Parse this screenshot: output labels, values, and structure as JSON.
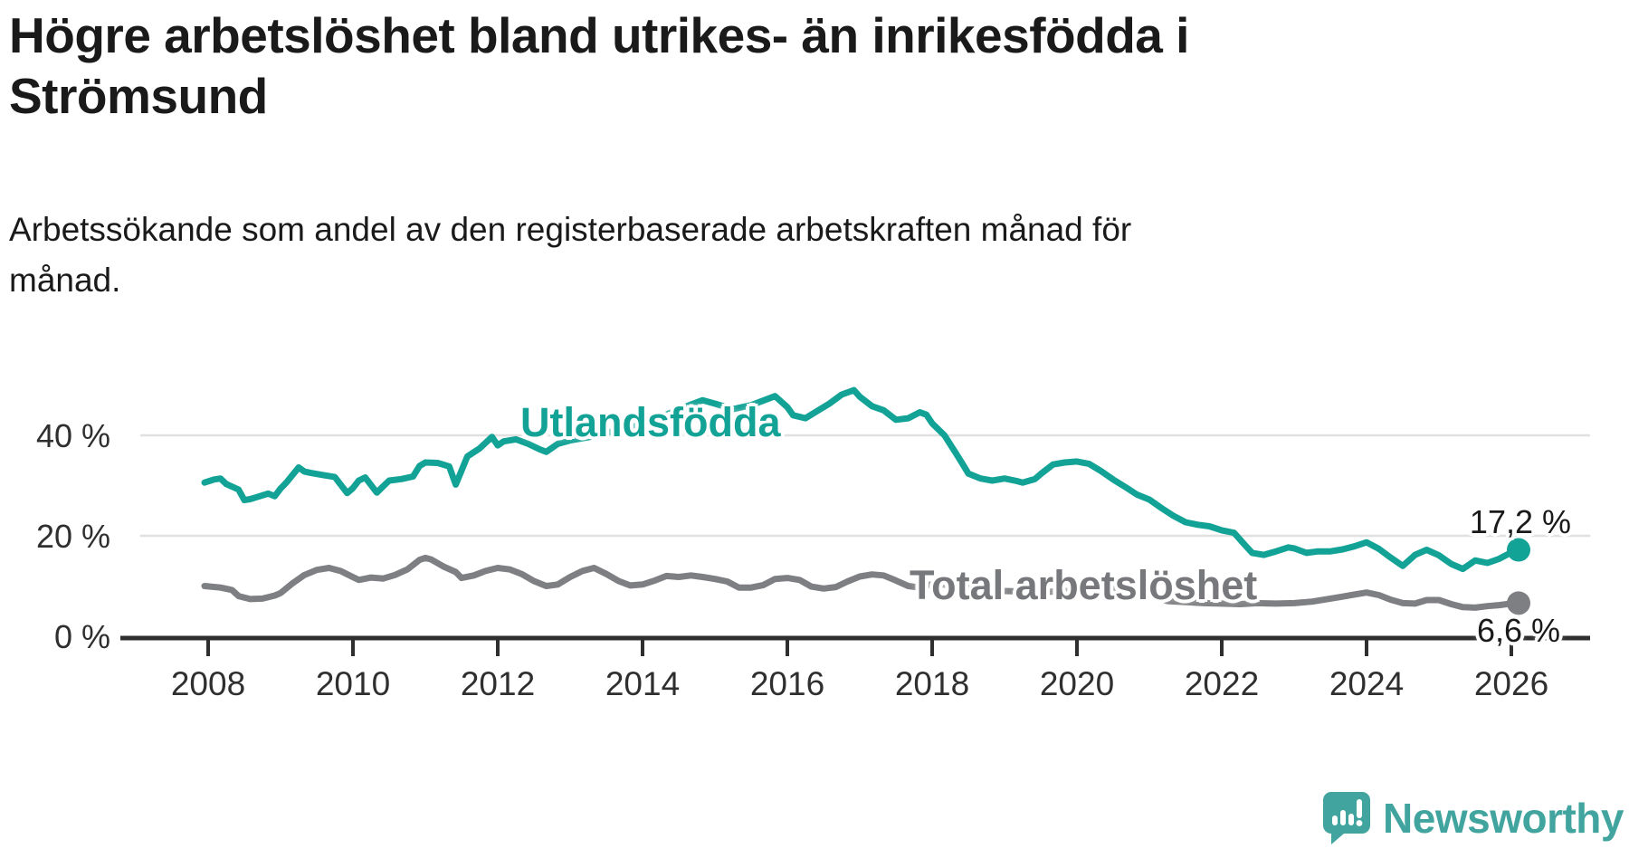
{
  "header": {
    "title_lines": [
      "Högre arbetslöshet bland utrikes- än inrikesfödda i",
      "Strömsund"
    ],
    "subtitle_lines": [
      "Arbetssökande som andel av den registerbaserade arbetskraften månad för",
      "månad."
    ]
  },
  "chart_data": {
    "type": "line",
    "title": "Högre arbetslöshet bland utrikes- än inrikesfödda i Strömsund",
    "subtitle": "Arbetssökande som andel av den registerbaserade arbetskraften månad för månad.",
    "grid": "horizontal",
    "x_axis": {
      "ticks": [
        2008,
        2010,
        2012,
        2014,
        2016,
        2018,
        2020,
        2022,
        2024,
        2026
      ],
      "range": [
        2007.1,
        2027.1
      ]
    },
    "y_axis": {
      "ticks": [
        0,
        20,
        40
      ],
      "suffix": " %",
      "range": [
        0,
        49
      ]
    },
    "colors": {
      "accent_teal": "#12a296",
      "gray": "#7e7f82",
      "axis": "#2f2f2f",
      "gridline": "#e0e0e0",
      "text": "#1a1a1a",
      "logo_teal": "#41a49e"
    },
    "series": [
      {
        "name": "Utlandsfödda",
        "color": "#12a296",
        "end_label": "17,2 %",
        "end_value": 17.2,
        "points": [
          [
            2007.95,
            30.6
          ],
          [
            2008.08,
            31.2
          ],
          [
            2008.17,
            31.4
          ],
          [
            2008.25,
            30.3
          ],
          [
            2008.42,
            29.2
          ],
          [
            2008.5,
            27.1
          ],
          [
            2008.58,
            27.3
          ],
          [
            2008.67,
            27.7
          ],
          [
            2008.83,
            28.4
          ],
          [
            2008.92,
            27.9
          ],
          [
            2009.0,
            29.4
          ],
          [
            2009.08,
            30.6
          ],
          [
            2009.25,
            33.6
          ],
          [
            2009.33,
            32.8
          ],
          [
            2009.42,
            32.5
          ],
          [
            2009.58,
            32.1
          ],
          [
            2009.75,
            31.7
          ],
          [
            2009.92,
            28.5
          ],
          [
            2010.0,
            29.5
          ],
          [
            2010.08,
            31.0
          ],
          [
            2010.17,
            31.6
          ],
          [
            2010.33,
            28.6
          ],
          [
            2010.42,
            29.9
          ],
          [
            2010.5,
            31.0
          ],
          [
            2010.67,
            31.3
          ],
          [
            2010.83,
            31.8
          ],
          [
            2010.92,
            33.9
          ],
          [
            2011.0,
            34.6
          ],
          [
            2011.17,
            34.5
          ],
          [
            2011.33,
            33.8
          ],
          [
            2011.42,
            30.2
          ],
          [
            2011.5,
            33.0
          ],
          [
            2011.58,
            35.8
          ],
          [
            2011.75,
            37.4
          ],
          [
            2011.92,
            39.7
          ],
          [
            2012.0,
            38.0
          ],
          [
            2012.08,
            38.8
          ],
          [
            2012.25,
            39.2
          ],
          [
            2012.42,
            38.3
          ],
          [
            2012.58,
            37.2
          ],
          [
            2012.67,
            36.7
          ],
          [
            2012.83,
            38.3
          ],
          [
            2013.0,
            39.0
          ],
          [
            2013.25,
            39.6
          ],
          [
            2013.5,
            40.5
          ],
          [
            2013.75,
            41.3
          ],
          [
            2014.0,
            42.2
          ],
          [
            2014.25,
            43.6
          ],
          [
            2014.5,
            45.2
          ],
          [
            2014.83,
            47.0
          ],
          [
            2015.0,
            46.3
          ],
          [
            2015.25,
            45.2
          ],
          [
            2015.5,
            46.0
          ],
          [
            2015.83,
            47.8
          ],
          [
            2016.0,
            45.6
          ],
          [
            2016.08,
            44.0
          ],
          [
            2016.25,
            43.4
          ],
          [
            2016.42,
            44.9
          ],
          [
            2016.58,
            46.3
          ],
          [
            2016.75,
            48.1
          ],
          [
            2016.92,
            49.0
          ],
          [
            2017.0,
            47.7
          ],
          [
            2017.17,
            45.8
          ],
          [
            2017.33,
            45.0
          ],
          [
            2017.5,
            43.1
          ],
          [
            2017.67,
            43.4
          ],
          [
            2017.83,
            44.6
          ],
          [
            2017.92,
            44.1
          ],
          [
            2018.0,
            42.4
          ],
          [
            2018.17,
            40.0
          ],
          [
            2018.33,
            36.4
          ],
          [
            2018.42,
            34.3
          ],
          [
            2018.5,
            32.4
          ],
          [
            2018.67,
            31.4
          ],
          [
            2018.83,
            31.0
          ],
          [
            2019.0,
            31.4
          ],
          [
            2019.17,
            30.9
          ],
          [
            2019.25,
            30.6
          ],
          [
            2019.42,
            31.3
          ],
          [
            2019.5,
            32.3
          ],
          [
            2019.67,
            34.2
          ],
          [
            2019.83,
            34.6
          ],
          [
            2020.0,
            34.8
          ],
          [
            2020.17,
            34.3
          ],
          [
            2020.33,
            32.9
          ],
          [
            2020.5,
            31.2
          ],
          [
            2020.67,
            29.7
          ],
          [
            2020.83,
            28.2
          ],
          [
            2021.0,
            27.2
          ],
          [
            2021.17,
            25.5
          ],
          [
            2021.33,
            24.0
          ],
          [
            2021.5,
            22.7
          ],
          [
            2021.67,
            22.2
          ],
          [
            2021.83,
            21.9
          ],
          [
            2022.0,
            21.1
          ],
          [
            2022.17,
            20.6
          ],
          [
            2022.33,
            18.0
          ],
          [
            2022.42,
            16.6
          ],
          [
            2022.58,
            16.2
          ],
          [
            2022.75,
            16.9
          ],
          [
            2022.92,
            17.7
          ],
          [
            2023.0,
            17.5
          ],
          [
            2023.17,
            16.6
          ],
          [
            2023.33,
            16.9
          ],
          [
            2023.5,
            16.9
          ],
          [
            2023.67,
            17.3
          ],
          [
            2023.83,
            17.9
          ],
          [
            2024.0,
            18.7
          ],
          [
            2024.17,
            17.4
          ],
          [
            2024.33,
            15.7
          ],
          [
            2024.5,
            14.0
          ],
          [
            2024.67,
            16.2
          ],
          [
            2024.83,
            17.2
          ],
          [
            2025.0,
            16.1
          ],
          [
            2025.17,
            14.4
          ],
          [
            2025.33,
            13.4
          ],
          [
            2025.5,
            15.1
          ],
          [
            2025.67,
            14.6
          ],
          [
            2025.83,
            15.4
          ],
          [
            2026.0,
            16.7
          ],
          [
            2026.1,
            17.2
          ]
        ]
      },
      {
        "name": "Total arbetslöshet",
        "color": "#7e7f82",
        "end_label": "6,6 %",
        "end_value": 6.6,
        "points": [
          [
            2007.95,
            10.0
          ],
          [
            2008.17,
            9.7
          ],
          [
            2008.33,
            9.2
          ],
          [
            2008.42,
            8.0
          ],
          [
            2008.58,
            7.4
          ],
          [
            2008.75,
            7.5
          ],
          [
            2008.92,
            8.1
          ],
          [
            2009.0,
            8.6
          ],
          [
            2009.17,
            10.6
          ],
          [
            2009.33,
            12.2
          ],
          [
            2009.5,
            13.2
          ],
          [
            2009.67,
            13.6
          ],
          [
            2009.83,
            13.0
          ],
          [
            2010.08,
            11.2
          ],
          [
            2010.25,
            11.7
          ],
          [
            2010.42,
            11.5
          ],
          [
            2010.58,
            12.2
          ],
          [
            2010.75,
            13.3
          ],
          [
            2010.92,
            15.2
          ],
          [
            2011.0,
            15.6
          ],
          [
            2011.08,
            15.3
          ],
          [
            2011.25,
            13.9
          ],
          [
            2011.42,
            12.8
          ],
          [
            2011.5,
            11.6
          ],
          [
            2011.67,
            12.1
          ],
          [
            2011.83,
            13.0
          ],
          [
            2012.0,
            13.6
          ],
          [
            2012.17,
            13.3
          ],
          [
            2012.33,
            12.4
          ],
          [
            2012.5,
            11.0
          ],
          [
            2012.67,
            10.0
          ],
          [
            2012.83,
            10.3
          ],
          [
            2013.0,
            11.8
          ],
          [
            2013.17,
            13.0
          ],
          [
            2013.33,
            13.6
          ],
          [
            2013.5,
            12.4
          ],
          [
            2013.67,
            11.0
          ],
          [
            2013.83,
            10.1
          ],
          [
            2014.0,
            10.3
          ],
          [
            2014.17,
            11.1
          ],
          [
            2014.33,
            12.0
          ],
          [
            2014.5,
            11.8
          ],
          [
            2014.67,
            12.1
          ],
          [
            2014.83,
            11.8
          ],
          [
            2015.0,
            11.4
          ],
          [
            2015.17,
            10.9
          ],
          [
            2015.33,
            9.7
          ],
          [
            2015.5,
            9.7
          ],
          [
            2015.67,
            10.2
          ],
          [
            2015.83,
            11.4
          ],
          [
            2016.0,
            11.6
          ],
          [
            2016.17,
            11.2
          ],
          [
            2016.33,
            9.9
          ],
          [
            2016.5,
            9.5
          ],
          [
            2016.67,
            9.8
          ],
          [
            2016.83,
            10.9
          ],
          [
            2017.0,
            11.9
          ],
          [
            2017.17,
            12.3
          ],
          [
            2017.33,
            12.1
          ],
          [
            2017.5,
            11.1
          ],
          [
            2017.67,
            10.0
          ],
          [
            2017.83,
            9.7
          ],
          [
            2018.0,
            10.4
          ],
          [
            2018.25,
            10.2
          ],
          [
            2018.5,
            9.6
          ],
          [
            2019.0,
            9.0
          ],
          [
            2019.5,
            8.8
          ],
          [
            2020.0,
            9.1
          ],
          [
            2020.42,
            9.6
          ],
          [
            2020.83,
            8.9
          ],
          [
            2021.0,
            8.2
          ],
          [
            2021.25,
            7.0
          ],
          [
            2021.5,
            6.8
          ],
          [
            2021.75,
            6.6
          ],
          [
            2022.0,
            6.5
          ],
          [
            2022.25,
            6.4
          ],
          [
            2022.5,
            6.6
          ],
          [
            2022.75,
            6.5
          ],
          [
            2023.0,
            6.6
          ],
          [
            2023.25,
            6.9
          ],
          [
            2023.5,
            7.5
          ],
          [
            2023.67,
            7.9
          ],
          [
            2023.83,
            8.3
          ],
          [
            2024.0,
            8.7
          ],
          [
            2024.17,
            8.2
          ],
          [
            2024.33,
            7.3
          ],
          [
            2024.5,
            6.6
          ],
          [
            2024.67,
            6.5
          ],
          [
            2024.83,
            7.2
          ],
          [
            2025.0,
            7.2
          ],
          [
            2025.17,
            6.4
          ],
          [
            2025.33,
            5.8
          ],
          [
            2025.5,
            5.7
          ],
          [
            2025.67,
            6.0
          ],
          [
            2025.83,
            6.2
          ],
          [
            2026.0,
            6.5
          ],
          [
            2026.1,
            6.6
          ]
        ]
      }
    ]
  },
  "footer": {
    "brand": "Newsworthy"
  }
}
